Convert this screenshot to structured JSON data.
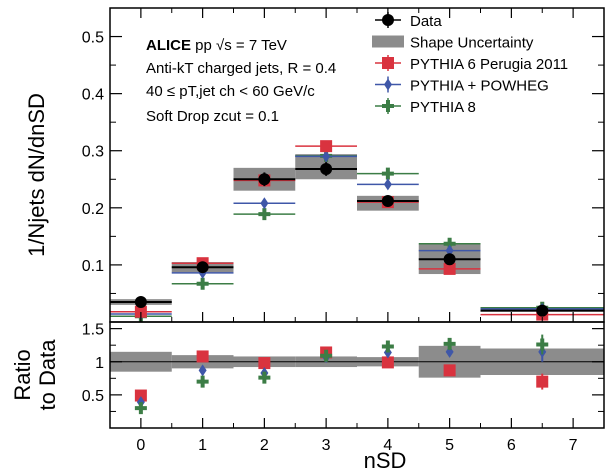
{
  "chart_data": {
    "type": "scatter",
    "annotations": {
      "l1_bold": "ALICE",
      "l1_rest": " pp √s = 7 TeV",
      "l2": "Anti-kT charged jets, R = 0.4",
      "l3": "40 ≤ pT,jet ch < 60 GeV/c",
      "l4": "Soft Drop zcut = 0.1"
    },
    "ylabel_main": "1/Njets dN/dnSD",
    "ylabel_ratio_1": "Ratio",
    "ylabel_ratio_2": "to Data",
    "xlabel": "nSD",
    "xlim": [
      -0.5,
      7.5
    ],
    "ylim_main": [
      0,
      0.55
    ],
    "ylim_ratio": [
      0,
      1.6
    ],
    "xticks": [
      0,
      1,
      2,
      3,
      4,
      5,
      6,
      7
    ],
    "yticks_main": [
      0.1,
      0.2,
      0.3,
      0.4,
      0.5
    ],
    "yticks_ratio": [
      0.5,
      1,
      1.5
    ],
    "bins": [
      {
        "lo": -0.5,
        "hi": 0.5
      },
      {
        "lo": 0.5,
        "hi": 1.5
      },
      {
        "lo": 1.5,
        "hi": 2.5
      },
      {
        "lo": 2.5,
        "hi": 3.5
      },
      {
        "lo": 3.5,
        "hi": 4.5
      },
      {
        "lo": 4.5,
        "hi": 5.5
      },
      {
        "lo": 5.5,
        "hi": 7.5
      }
    ],
    "legend": [
      {
        "key": "data",
        "label": "Data"
      },
      {
        "key": "shape",
        "label": "Shape Uncertainty"
      },
      {
        "key": "p6",
        "label": "PYTHIA 6 Perugia 2011"
      },
      {
        "key": "pp",
        "label": "PYTHIA + POWHEG"
      },
      {
        "key": "p8",
        "label": "PYTHIA 8"
      }
    ],
    "colors": {
      "data": "#000000",
      "shape": "#8c8c8c",
      "p6": "#d9333f",
      "pp": "#3f57a8",
      "p8": "#3c7d46"
    },
    "series": [
      {
        "key": "data",
        "name": "Data",
        "x": [
          0,
          1,
          2,
          3,
          4,
          5,
          6.5
        ],
        "y": [
          0.035,
          0.096,
          0.25,
          0.268,
          0.212,
          0.11,
          0.02
        ],
        "yerr": [
          0.003,
          0.006,
          0.012,
          0.012,
          0.008,
          0.008,
          0.003
        ]
      },
      {
        "key": "p6",
        "name": "PYTHIA 6 Perugia 2011",
        "x": [
          0,
          1,
          2,
          3,
          4,
          5,
          6.5
        ],
        "y": [
          0.018,
          0.103,
          0.248,
          0.308,
          0.21,
          0.093,
          0.013
        ]
      },
      {
        "key": "pp",
        "name": "PYTHIA + POWHEG",
        "x": [
          0,
          1,
          2,
          3,
          4,
          5,
          6.5
        ],
        "y": [
          0.014,
          0.086,
          0.208,
          0.29,
          0.241,
          0.125,
          0.023
        ]
      },
      {
        "key": "p8",
        "name": "PYTHIA 8",
        "x": [
          0,
          1,
          2,
          3,
          4,
          5,
          6.5
        ],
        "y": [
          0.01,
          0.067,
          0.189,
          0.291,
          0.26,
          0.137,
          0.025
        ]
      }
    ],
    "shape_uncertainty": {
      "x": [
        0,
        1,
        2,
        3,
        4,
        5,
        6.5
      ],
      "center": [
        0.035,
        0.096,
        0.25,
        0.272,
        0.208,
        0.11,
        0.022
      ],
      "halfwidth": [
        0.005,
        0.009,
        0.02,
        0.022,
        0.013,
        0.026,
        0.004
      ]
    },
    "ratio_series": [
      {
        "key": "p6",
        "x": [
          0,
          1,
          2,
          3,
          4,
          5,
          6.5
        ],
        "y": [
          0.49,
          1.08,
          0.98,
          1.14,
          0.99,
          0.87,
          0.7
        ],
        "yerr": [
          0.05,
          0.07,
          0.05,
          0.05,
          0.05,
          0.06,
          0.12
        ]
      },
      {
        "key": "pp",
        "x": [
          0,
          1,
          2,
          3,
          4,
          5,
          6.5
        ],
        "y": [
          0.39,
          0.87,
          0.83,
          1.07,
          1.14,
          1.15,
          1.15
        ],
        "yerr": [
          0.06,
          0.07,
          0.05,
          0.05,
          0.05,
          0.07,
          0.15
        ]
      },
      {
        "key": "p8",
        "x": [
          0,
          1,
          2,
          3,
          4,
          5,
          6.5
        ],
        "y": [
          0.3,
          0.7,
          0.76,
          1.09,
          1.23,
          1.27,
          1.26
        ],
        "yerr": [
          0.08,
          0.08,
          0.06,
          0.05,
          0.06,
          0.08,
          0.15
        ]
      }
    ],
    "ratio_uncertainty": {
      "x": [
        0,
        1,
        2,
        3,
        4,
        5,
        6.5
      ],
      "center": [
        1.0,
        1.0,
        1.0,
        1.0,
        1.0,
        1.0,
        1.0
      ],
      "halfwidth": [
        0.15,
        0.1,
        0.08,
        0.08,
        0.07,
        0.24,
        0.2
      ]
    }
  }
}
